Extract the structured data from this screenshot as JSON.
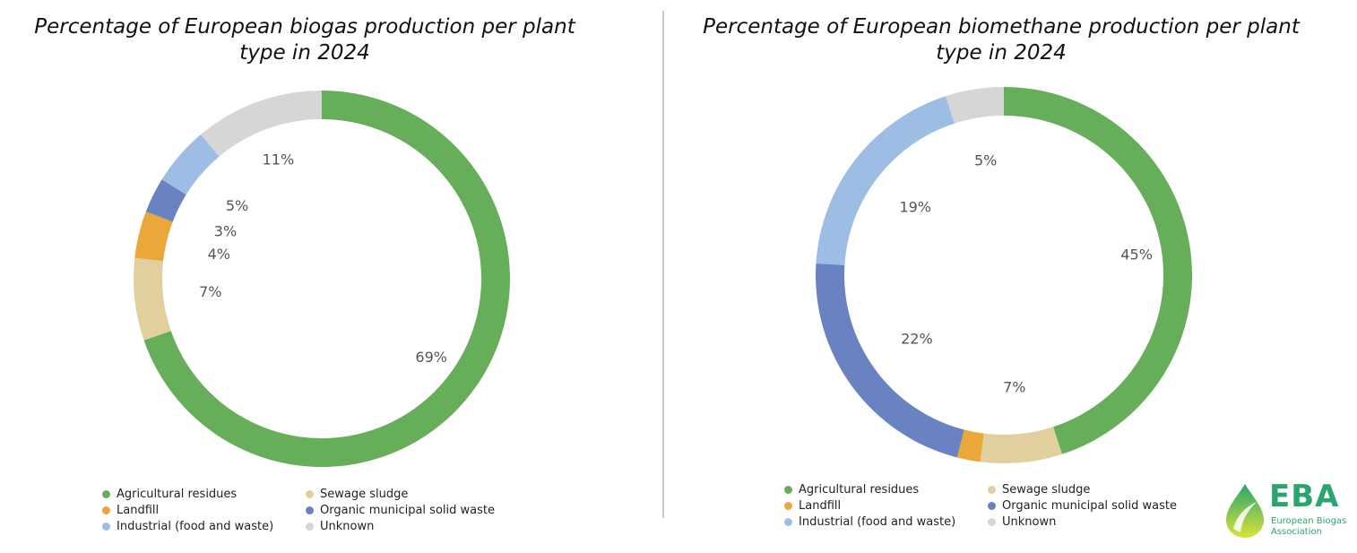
{
  "colors": {
    "agricultural": "#66ae5a",
    "sewage": "#e1d09e",
    "landfill": "#eaa83a",
    "organic": "#6882c2",
    "industrial": "#9ebde4",
    "unknown": "#d6d6d6"
  },
  "chart_data": [
    {
      "type": "pie",
      "title": "Percentage of European biogas production per plant type in 2024",
      "categories": [
        "Agricultural residues",
        "Sewage sludge",
        "Landfill",
        "Organic municipal solid waste",
        "Industrial (food and waste)",
        "Unknown"
      ],
      "values": [
        69,
        7,
        4,
        3,
        5,
        11
      ],
      "labels": [
        "69%",
        "7%",
        "4%",
        "3%",
        "5%",
        "11%"
      ],
      "legend": [
        "Agricultural residues",
        "Sewage sludge",
        "Landfill",
        "Organic municipal solid waste",
        "Industrial (food and waste)",
        "Unknown"
      ]
    },
    {
      "type": "pie",
      "title": "Percentage of European biomethane production per plant type in 2024",
      "categories": [
        "Agricultural residues",
        "Sewage sludge",
        "Landfill",
        "Organic municipal solid waste",
        "Industrial (food and waste)",
        "Unknown"
      ],
      "values": [
        45,
        7,
        2,
        22,
        19,
        5
      ],
      "labels": [
        "45%",
        "7%",
        "",
        "22%",
        "19%",
        "5%"
      ],
      "legend": [
        "Agricultural residues",
        "Sewage sludge",
        "Landfill",
        "Organic municipal solid waste",
        "Industrial (food and waste)",
        "Unknown"
      ]
    }
  ],
  "logo": {
    "acronym": "EBA",
    "name": "European Biogas Association"
  }
}
